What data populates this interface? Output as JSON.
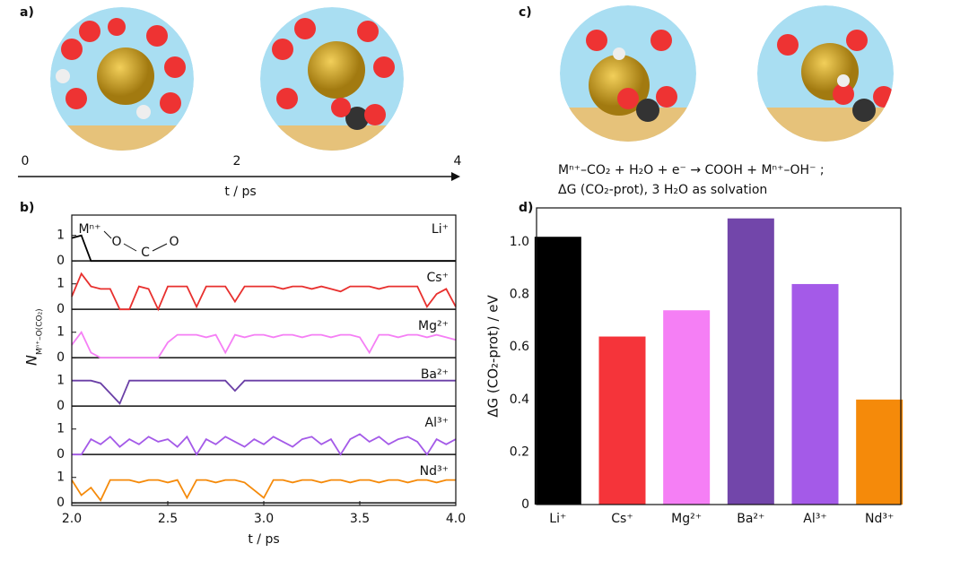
{
  "panel_labels": [
    "a)",
    "b)",
    "c)",
    "d)"
  ],
  "timeline": {
    "ticks": [
      "0",
      "2",
      "4"
    ],
    "label": "t / ps"
  },
  "reaction": [
    "Mⁿ⁺–CO₂ + H₂O + e⁻ → COOH + Mⁿ⁺–OH⁻ ;",
    "ΔG (CO₂-prot), 3 H₂O as solvation"
  ],
  "chart_data": [
    {
      "type": "line",
      "x_label": "t / ps",
      "y_label": "N",
      "y_label_sub": "Mⁿ⁺–O(CO₂)",
      "annotation": [
        "Mⁿ⁺",
        "O",
        "C",
        "O"
      ],
      "xlim": [
        2,
        4
      ],
      "xticks": [
        {
          "value": 2,
          "label": "2.0"
        },
        2.5,
        {
          "value": 3,
          "label": "3.0"
        },
        3.5,
        {
          "value": 4,
          "label": "4.0"
        }
      ],
      "ylim": [
        -0.1,
        1.8
      ],
      "yticks": [
        0,
        1
      ],
      "x": [
        2,
        2.05,
        2.1,
        2.15,
        2.2,
        2.25,
        2.3,
        2.35,
        2.4,
        2.45,
        2.5,
        2.55,
        2.6,
        2.65,
        2.7,
        2.75,
        2.8,
        2.85,
        2.9,
        2.95,
        3,
        3.05,
        3.1,
        3.15,
        3.2,
        3.25,
        3.3,
        3.35,
        3.4,
        3.45,
        3.5,
        3.55,
        3.6,
        3.65,
        3.7,
        3.75,
        3.8,
        3.85,
        3.9,
        3.95,
        4
      ],
      "series": [
        {
          "name": "Li⁺",
          "color": "#000000",
          "values": [
            0.9,
            1.0,
            0,
            0,
            0,
            0,
            0,
            0,
            0,
            0,
            0,
            0,
            0,
            0,
            0,
            0,
            0,
            0,
            0,
            0,
            0,
            0,
            0,
            0,
            0,
            0,
            0,
            0,
            0,
            0,
            0,
            0,
            0,
            0,
            0,
            0,
            0,
            0,
            0,
            0,
            0
          ]
        },
        {
          "name": "Cs⁺",
          "color": "#e8302e",
          "values": [
            0.5,
            1.4,
            0.9,
            0.8,
            0.8,
            0,
            0,
            0.9,
            0.8,
            0,
            0.9,
            0.9,
            0.9,
            0.1,
            0.9,
            0.9,
            0.9,
            0.3,
            0.9,
            0.9,
            0.9,
            0.9,
            0.8,
            0.9,
            0.9,
            0.8,
            0.9,
            0.8,
            0.7,
            0.9,
            0.9,
            0.9,
            0.8,
            0.9,
            0.9,
            0.9,
            0.9,
            0.1,
            0.6,
            0.8,
            0.1
          ]
        },
        {
          "name": "Mg²⁺",
          "color": "#f57ff5",
          "values": [
            0.5,
            1.0,
            0.2,
            0,
            0,
            0,
            0,
            0,
            0,
            0,
            0.6,
            0.9,
            0.9,
            0.9,
            0.8,
            0.9,
            0.2,
            0.9,
            0.8,
            0.9,
            0.9,
            0.8,
            0.9,
            0.9,
            0.8,
            0.9,
            0.9,
            0.8,
            0.9,
            0.9,
            0.8,
            0.2,
            0.9,
            0.9,
            0.8,
            0.9,
            0.9,
            0.8,
            0.9,
            0.8,
            0.7
          ]
        },
        {
          "name": "Ba²⁺",
          "color": "#6a3fa6",
          "values": [
            1,
            1,
            1,
            0.9,
            0.5,
            0.1,
            1,
            1,
            1,
            1,
            1,
            1,
            1,
            1,
            1,
            1,
            1,
            0.6,
            1,
            1,
            1,
            1,
            1,
            1,
            1,
            1,
            1,
            1,
            1,
            1,
            1,
            1,
            1,
            1,
            1,
            1,
            1,
            1,
            1,
            1,
            1
          ]
        },
        {
          "name": "Al³⁺",
          "color": "#a45ae8",
          "values": [
            0,
            0,
            0.6,
            0.4,
            0.7,
            0.3,
            0.6,
            0.4,
            0.7,
            0.5,
            0.6,
            0.3,
            0.7,
            0,
            0.6,
            0.4,
            0.7,
            0.5,
            0.3,
            0.6,
            0.4,
            0.7,
            0.5,
            0.3,
            0.6,
            0.7,
            0.4,
            0.6,
            0,
            0.6,
            0.8,
            0.5,
            0.7,
            0.4,
            0.6,
            0.7,
            0.5,
            0,
            0.6,
            0.4,
            0.6
          ]
        },
        {
          "name": "Nd³⁺",
          "color": "#f58a0a",
          "values": [
            0.9,
            0.3,
            0.6,
            0.1,
            0.9,
            0.9,
            0.9,
            0.8,
            0.9,
            0.9,
            0.8,
            0.9,
            0.2,
            0.9,
            0.9,
            0.8,
            0.9,
            0.9,
            0.8,
            0.5,
            0.2,
            0.9,
            0.9,
            0.8,
            0.9,
            0.9,
            0.8,
            0.9,
            0.9,
            0.8,
            0.9,
            0.9,
            0.8,
            0.9,
            0.9,
            0.8,
            0.9,
            0.9,
            0.8,
            0.9,
            0.9
          ]
        }
      ]
    },
    {
      "type": "bar",
      "y_label": "ΔG (CO₂-prot) / eV",
      "categories": [
        "Li⁺",
        "Cs⁺",
        "Mg²⁺",
        "Ba²⁺",
        "Al³⁺",
        "Nd³⁺"
      ],
      "values": [
        1.02,
        0.64,
        0.74,
        1.09,
        0.84,
        0.4
      ],
      "colors": [
        "#000000",
        "#f5343a",
        "#f57ff5",
        "#7246aa",
        "#a45ae8",
        "#f58a0a"
      ],
      "ylim": [
        0,
        1.13
      ],
      "yticks": [
        0,
        0.2,
        0.4,
        0.6,
        0.8,
        {
          "value": 1,
          "label": "1.0"
        }
      ]
    }
  ]
}
